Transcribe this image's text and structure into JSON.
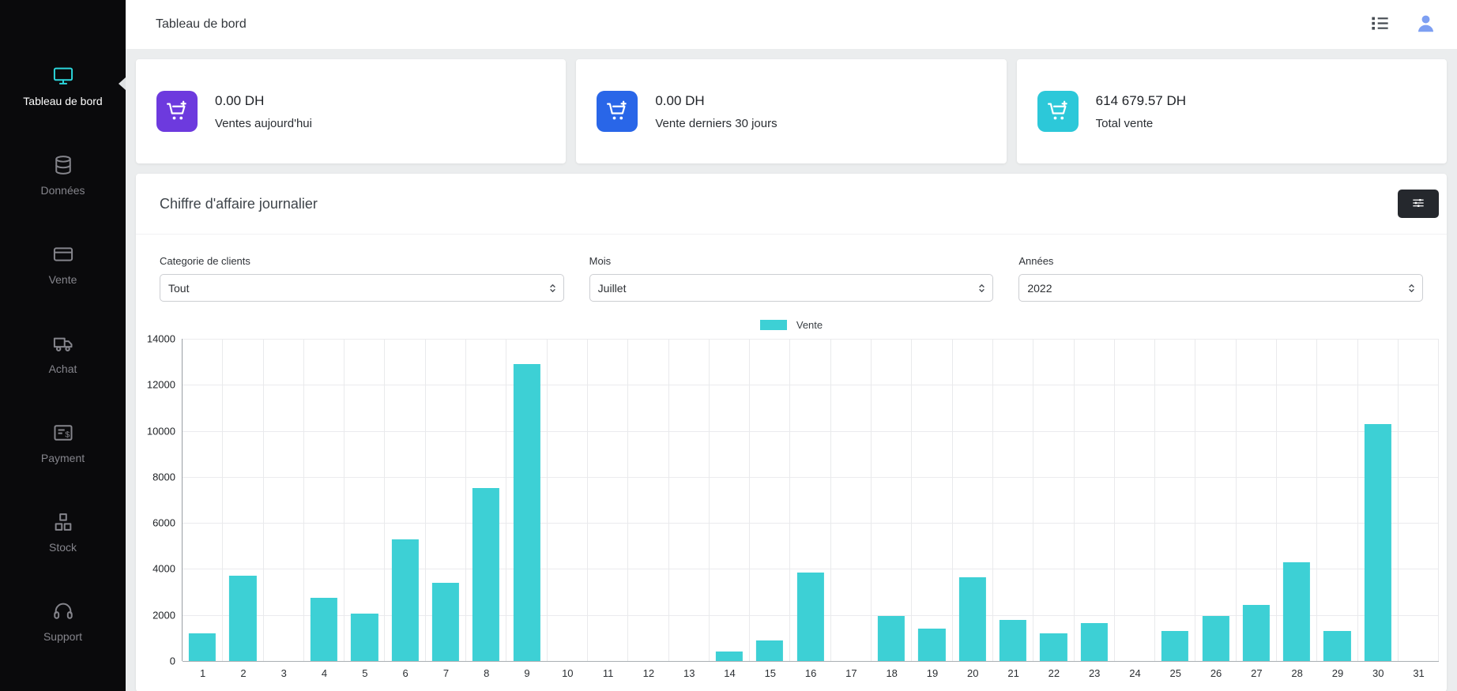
{
  "header": {
    "title": "Tableau de bord",
    "icons": [
      {
        "name": "task-list-icon"
      },
      {
        "name": "user-avatar-icon"
      }
    ]
  },
  "sidebar": {
    "active_color": "#2cd6dc",
    "items": [
      {
        "label": "Tableau de bord",
        "icon": "monitor-icon",
        "active": true
      },
      {
        "label": "Données",
        "icon": "database-icon",
        "active": false
      },
      {
        "label": "Vente",
        "icon": "credit-card-icon",
        "active": false
      },
      {
        "label": "Achat",
        "icon": "truck-icon",
        "active": false
      },
      {
        "label": "Payment",
        "icon": "invoice-icon",
        "active": false
      },
      {
        "label": "Stock",
        "icon": "boxes-icon",
        "active": false
      },
      {
        "label": "Support",
        "icon": "headset-icon",
        "active": false
      }
    ]
  },
  "stat_cards": [
    {
      "amount": "0.00 DH",
      "label": "Ventes aujourd'hui",
      "icon": "cart-plus-icon",
      "color": "#6d3ade"
    },
    {
      "amount": "0.00 DH",
      "label": "Vente derniers 30 jours",
      "icon": "cart-plus-icon",
      "color": "#2966e8"
    },
    {
      "amount": "614 679.57 DH",
      "label": "Total vente",
      "icon": "cart-plus-icon",
      "color": "#2cc8d9"
    }
  ],
  "chart_card": {
    "title": "Chiffre d'affaire journalier",
    "filter_button_icon": "sliders-icon",
    "filters": [
      {
        "label": "Categorie de clients",
        "value": "Tout"
      },
      {
        "label": "Mois",
        "value": "Juillet"
      },
      {
        "label": "Années",
        "value": "2022"
      }
    ]
  },
  "chart_data": {
    "type": "bar",
    "title": "Chiffre d'affaire journalier",
    "categories": [
      1,
      2,
      3,
      4,
      5,
      6,
      7,
      8,
      9,
      10,
      11,
      12,
      13,
      14,
      15,
      16,
      17,
      18,
      19,
      20,
      21,
      22,
      23,
      24,
      25,
      26,
      27,
      28,
      29,
      30,
      31
    ],
    "series": [
      {
        "name": "Vente",
        "color": "#3dd0d5",
        "values": [
          1200,
          3700,
          0,
          2750,
          2050,
          5300,
          3400,
          7500,
          12900,
          0,
          0,
          0,
          0,
          400,
          900,
          3850,
          0,
          1950,
          1400,
          3650,
          1800,
          1200,
          1650,
          0,
          1300,
          1950,
          2450,
          4300,
          1300,
          10300,
          0
        ]
      }
    ],
    "xlabel": "",
    "ylabel": "",
    "ylim": [
      0,
      14000
    ],
    "yticks": [
      0,
      2000,
      4000,
      6000,
      8000,
      10000,
      12000,
      14000
    ],
    "grid": true,
    "legend_position": "top"
  }
}
